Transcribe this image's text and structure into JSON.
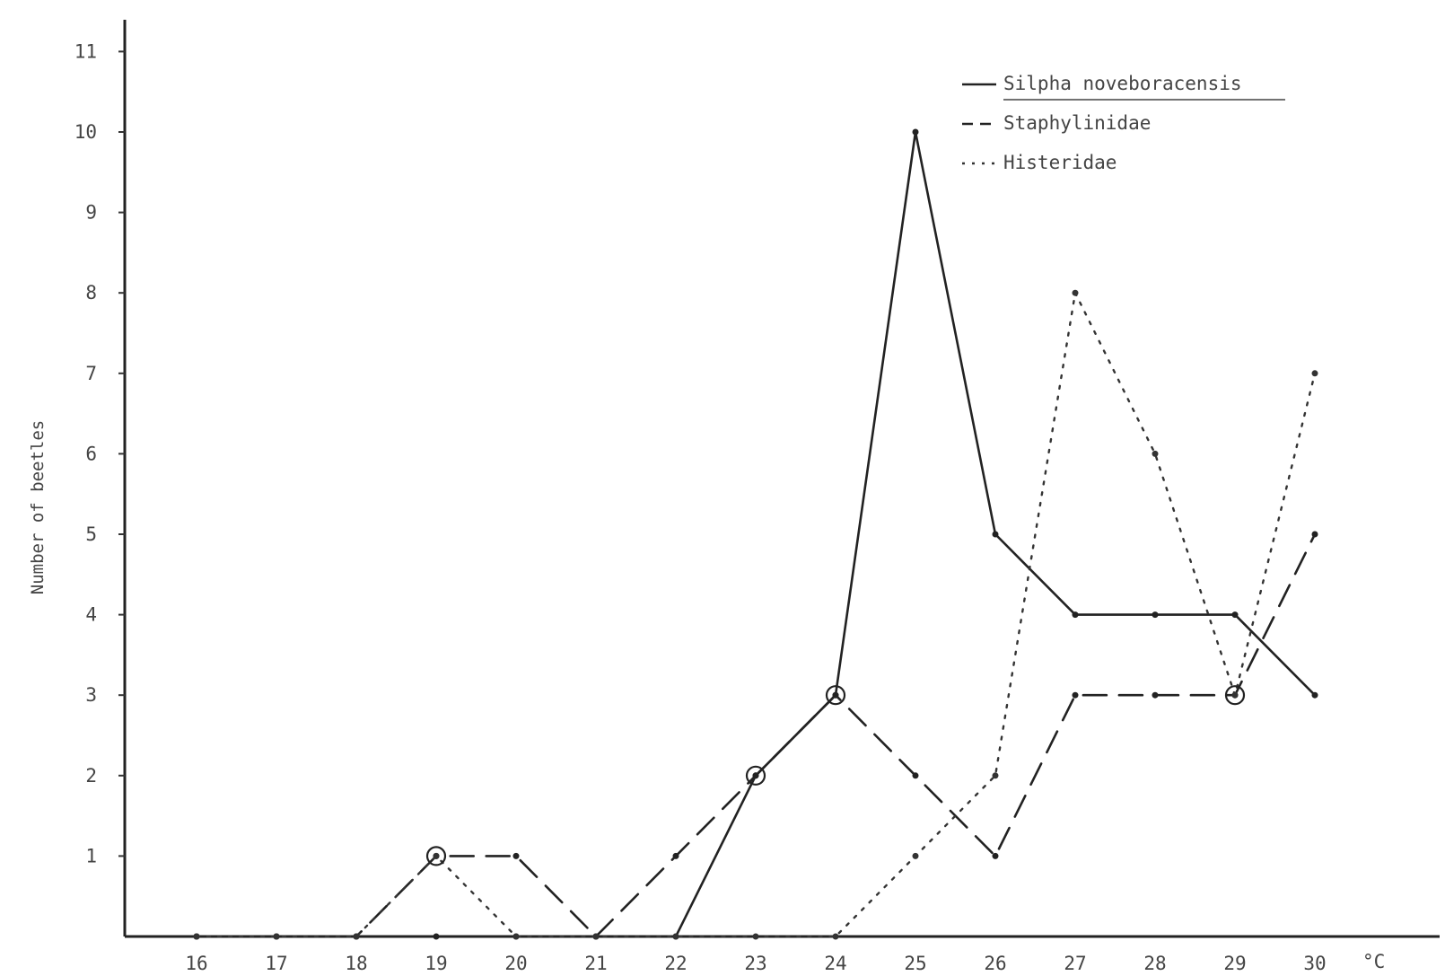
{
  "chart_data": {
    "type": "line",
    "title": "",
    "xlabel": "",
    "ylabel": "Number of beetles",
    "x_unit": "°C",
    "categories": [
      16,
      17,
      18,
      19,
      20,
      21,
      22,
      23,
      24,
      25,
      26,
      27,
      28,
      29,
      30
    ],
    "x_tick_labels": [
      "16",
      "17",
      "18",
      "19",
      "20",
      "21",
      "22",
      "23",
      "24",
      "25",
      "26",
      "27",
      "28",
      "29",
      "30"
    ],
    "y_ticks": [
      1,
      2,
      3,
      4,
      5,
      6,
      7,
      8,
      9,
      10,
      11
    ],
    "ylim": [
      0,
      11.5
    ],
    "grid": false,
    "legend_position": "top-right",
    "series": [
      {
        "name": "Silpha noveboracensis",
        "style": "solid",
        "color": "#222222",
        "values": [
          0,
          0,
          0,
          0,
          0,
          0,
          0,
          2,
          3,
          10,
          5,
          4,
          4,
          4,
          3
        ]
      },
      {
        "name": "Staphylinidae",
        "style": "dashed",
        "color": "#222222",
        "values": [
          0,
          0,
          0,
          1,
          1,
          0,
          1,
          2,
          3,
          2,
          1,
          3,
          3,
          3,
          5
        ]
      },
      {
        "name": "Histeridae",
        "style": "dotted",
        "color": "#333333",
        "values": [
          0,
          0,
          0,
          1,
          0,
          0,
          0,
          0,
          0,
          1,
          2,
          8,
          6,
          3,
          7
        ]
      }
    ]
  }
}
